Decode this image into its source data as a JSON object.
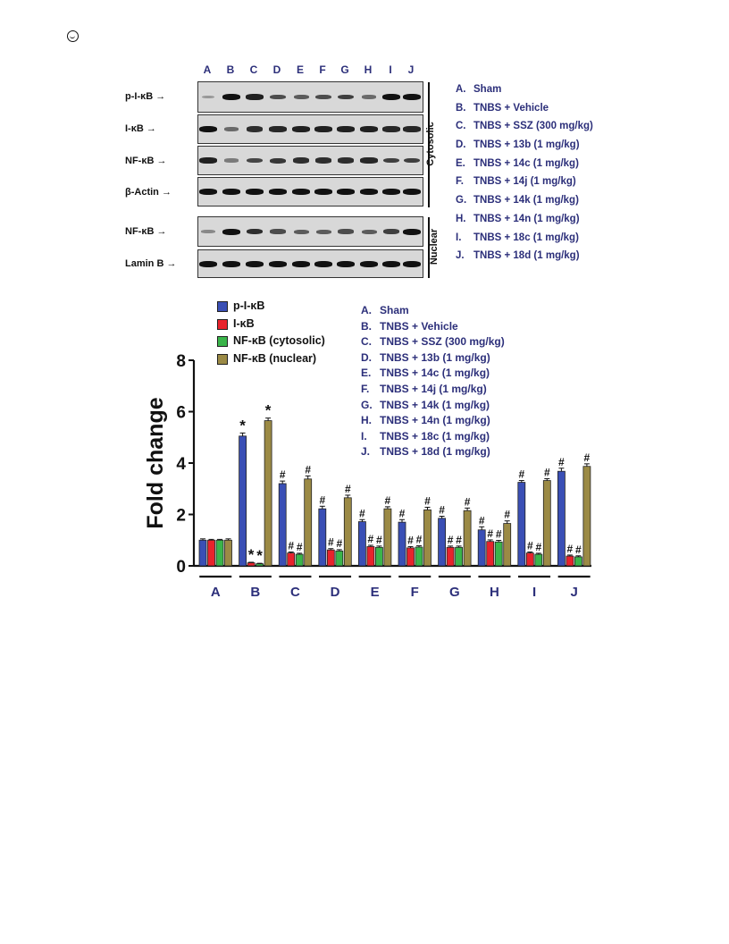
{
  "blot": {
    "lanes": [
      "A",
      "B",
      "C",
      "D",
      "E",
      "F",
      "G",
      "H",
      "I",
      "J"
    ],
    "cytosolic_rows": [
      "p-I-κB",
      "I-κB",
      "NF-κB",
      "β-Actin"
    ],
    "nuclear_rows": [
      "NF-κB",
      "Lamin B"
    ],
    "cytosolic_label": "Cytosolic",
    "nuclear_label": "Nuclear"
  },
  "groups": [
    {
      "key": "A.",
      "text": "Sham"
    },
    {
      "key": "B.",
      "text": "TNBS + Vehicle"
    },
    {
      "key": "C.",
      "text": "TNBS + SSZ (300 mg/kg)"
    },
    {
      "key": "D.",
      "text": "TNBS + 13b (1 mg/kg)"
    },
    {
      "key": "E.",
      "text": "TNBS + 14c (1 mg/kg)"
    },
    {
      "key": "F.",
      "text": "TNBS + 14j (1 mg/kg)"
    },
    {
      "key": "G.",
      "text": "TNBS + 14k (1 mg/kg)"
    },
    {
      "key": "H.",
      "text": "TNBS + 14n (1 mg/kg)"
    },
    {
      "key": "I.",
      "text": "TNBS + 18c (1 mg/kg)"
    },
    {
      "key": "J.",
      "text": "TNBS + 18d (1 mg/kg)"
    }
  ],
  "colors": {
    "series": [
      "#3a4fb5",
      "#e8232c",
      "#3ab54a",
      "#9b8a45"
    ],
    "text": "#2c2f7a"
  },
  "chart_data": {
    "type": "bar",
    "ylabel": "Fold change",
    "xlabel": "",
    "ylim": [
      0,
      8
    ],
    "yticks": [
      "0",
      "2",
      "4",
      "6",
      "8"
    ],
    "categories": [
      "A",
      "B",
      "C",
      "D",
      "E",
      "F",
      "G",
      "H",
      "I",
      "J"
    ],
    "series": [
      {
        "name": "p-I-κB",
        "values": [
          1.0,
          5.05,
          3.2,
          2.22,
          1.72,
          1.7,
          1.85,
          1.4,
          3.25,
          3.68
        ],
        "errors": [
          0.05,
          0.12,
          0.1,
          0.1,
          0.08,
          0.1,
          0.08,
          0.12,
          0.07,
          0.12
        ],
        "marks": [
          "",
          "*",
          "#",
          "#",
          "#",
          "#",
          "#",
          "#",
          "#",
          "#"
        ]
      },
      {
        "name": "I-κB",
        "values": [
          1.0,
          0.12,
          0.5,
          0.62,
          0.75,
          0.7,
          0.72,
          0.95,
          0.5,
          0.38
        ],
        "errors": [
          0.03,
          0.02,
          0.04,
          0.05,
          0.05,
          0.05,
          0.05,
          0.06,
          0.04,
          0.04
        ],
        "marks": [
          "",
          "*",
          "#",
          "#",
          "#",
          "#",
          "#",
          "#",
          "#",
          "#"
        ]
      },
      {
        "name": "NF-κB (cytosolic)",
        "values": [
          1.0,
          0.08,
          0.45,
          0.58,
          0.72,
          0.73,
          0.72,
          0.93,
          0.45,
          0.35
        ],
        "errors": [
          0.03,
          0.02,
          0.04,
          0.05,
          0.05,
          0.05,
          0.05,
          0.06,
          0.04,
          0.04
        ],
        "marks": [
          "",
          "*",
          "#",
          "#",
          "#",
          "#",
          "#",
          "#",
          "#",
          "#"
        ]
      },
      {
        "name": "NF-κB (nuclear)",
        "values": [
          1.0,
          5.65,
          3.38,
          2.65,
          2.22,
          2.18,
          2.15,
          1.65,
          3.32,
          3.87
        ],
        "errors": [
          0.05,
          0.1,
          0.12,
          0.1,
          0.08,
          0.1,
          0.1,
          0.1,
          0.07,
          0.1
        ],
        "marks": [
          "",
          "*",
          "#",
          "#",
          "#",
          "#",
          "#",
          "#",
          "#",
          "#"
        ]
      }
    ]
  }
}
